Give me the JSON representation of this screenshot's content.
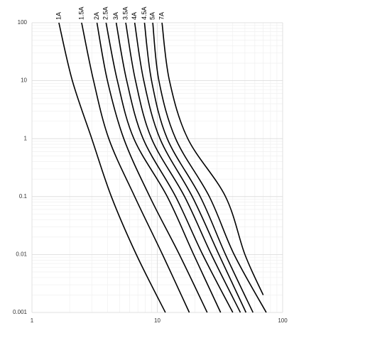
{
  "chart_data": {
    "type": "line",
    "xlog": true,
    "ylog": true,
    "grid": true,
    "xlim": [
      1,
      100
    ],
    "xticks": [
      1,
      10,
      100
    ],
    "ylim": [
      0.001,
      100
    ],
    "yticks": [
      0.001,
      0.01,
      0.1,
      1,
      10,
      100
    ],
    "series": [
      {
        "name": "1A",
        "color": "#000000",
        "x": [
          1.64,
          2.1,
          3.0,
          4.3,
          6.8,
          11.6
        ],
        "values": [
          100,
          10,
          1,
          0.1,
          0.01,
          0.001
        ]
      },
      {
        "name": "1.5A",
        "color": "#000000",
        "x": [
          2.49,
          3.1,
          4.1,
          6.6,
          11,
          18
        ],
        "values": [
          100,
          10,
          1,
          0.1,
          0.01,
          0.001
        ]
      },
      {
        "name": "2A",
        "color": "#000000",
        "x": [
          3.3,
          4.0,
          5.4,
          8.7,
          15,
          25
        ],
        "values": [
          100,
          10,
          1,
          0.1,
          0.01,
          0.001
        ]
      },
      {
        "name": "2.5A",
        "color": "#000000",
        "x": [
          3.9,
          4.8,
          6.5,
          12,
          19.5,
          32
        ],
        "values": [
          100,
          10,
          1,
          0.1,
          0.01,
          0.001
        ]
      },
      {
        "name": "3A",
        "color": "#000000",
        "x": [
          4.7,
          5.7,
          7.7,
          14,
          23,
          40
        ],
        "values": [
          100,
          10,
          1,
          0.1,
          0.01,
          0.001
        ]
      },
      {
        "name": "3.5A",
        "color": "#000000",
        "x": [
          5.6,
          6.7,
          9,
          16.5,
          27,
          46
        ],
        "values": [
          100,
          10,
          1,
          0.1,
          0.01,
          0.001
        ]
      },
      {
        "name": "4A",
        "color": "#000000",
        "x": [
          6.6,
          7.8,
          10.5,
          19,
          31,
          51
        ],
        "values": [
          100,
          10,
          1,
          0.1,
          0.01,
          0.001
        ]
      },
      {
        "name": "4.5A",
        "color": "#000000",
        "x": [
          7.9,
          9,
          12,
          22,
          35,
          58
        ],
        "values": [
          100,
          10,
          1,
          0.1,
          0.01,
          0.001
        ]
      },
      {
        "name": "5A",
        "color": "#000000",
        "x": [
          9.2,
          10.3,
          14,
          26,
          41,
          74
        ],
        "values": [
          100,
          10,
          1,
          0.1,
          0.01,
          0.001
        ]
      },
      {
        "name": "7A",
        "color": "#000000",
        "x": [
          10.9,
          12.5,
          17.5,
          35,
          50,
          70
        ],
        "values": [
          100,
          10,
          1,
          0.1,
          0.01,
          0.002
        ]
      }
    ]
  }
}
